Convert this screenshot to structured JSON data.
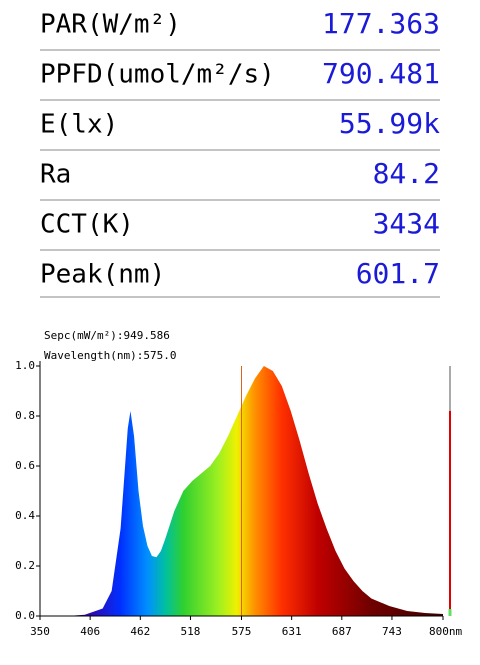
{
  "measurements": [
    {
      "label": "PAR(W/m²)",
      "value": "177.363"
    },
    {
      "label": "PPFD(umol/m²/s)",
      "value": "790.481"
    },
    {
      "label": "E(lx)",
      "value": "55.99k"
    },
    {
      "label": "Ra",
      "value": "84.2"
    },
    {
      "label": "CCT(K)",
      "value": "3434"
    },
    {
      "label": "Peak(nm)",
      "value": "601.7"
    }
  ],
  "chart_data": {
    "type": "area",
    "annotations": [
      "Sepc(mW/m²):949.586",
      "Wavelength(nm):575.0"
    ],
    "cursor": 575,
    "x": [
      380,
      400,
      420,
      430,
      440,
      445,
      448,
      451,
      455,
      460,
      465,
      470,
      475,
      480,
      485,
      490,
      500,
      510,
      520,
      530,
      540,
      550,
      560,
      570,
      580,
      590,
      600,
      610,
      620,
      630,
      640,
      650,
      660,
      670,
      680,
      690,
      700,
      710,
      720,
      740,
      760,
      780,
      800
    ],
    "values": [
      0,
      0.005,
      0.03,
      0.1,
      0.35,
      0.6,
      0.75,
      0.82,
      0.72,
      0.5,
      0.36,
      0.28,
      0.24,
      0.235,
      0.26,
      0.31,
      0.42,
      0.5,
      0.54,
      0.57,
      0.6,
      0.65,
      0.72,
      0.8,
      0.88,
      0.95,
      1.0,
      0.98,
      0.92,
      0.82,
      0.7,
      0.57,
      0.45,
      0.35,
      0.26,
      0.19,
      0.14,
      0.1,
      0.07,
      0.04,
      0.02,
      0.012,
      0.008
    ],
    "xlim": [
      350,
      800
    ],
    "ylim": [
      0,
      1
    ],
    "xticks": [
      350,
      406,
      462,
      518,
      575,
      631,
      687,
      743,
      {
        "value": 800,
        "label": "800nm"
      }
    ],
    "yticks": [
      {
        "value": 0,
        "label": "0.0"
      },
      {
        "value": 0.2,
        "label": "0.2"
      },
      {
        "value": 0.4,
        "label": "0.4"
      },
      {
        "value": 0.6,
        "label": "0.6"
      },
      {
        "value": 0.8,
        "label": "0.8"
      },
      {
        "value": 1,
        "label": "1.0"
      }
    ]
  }
}
